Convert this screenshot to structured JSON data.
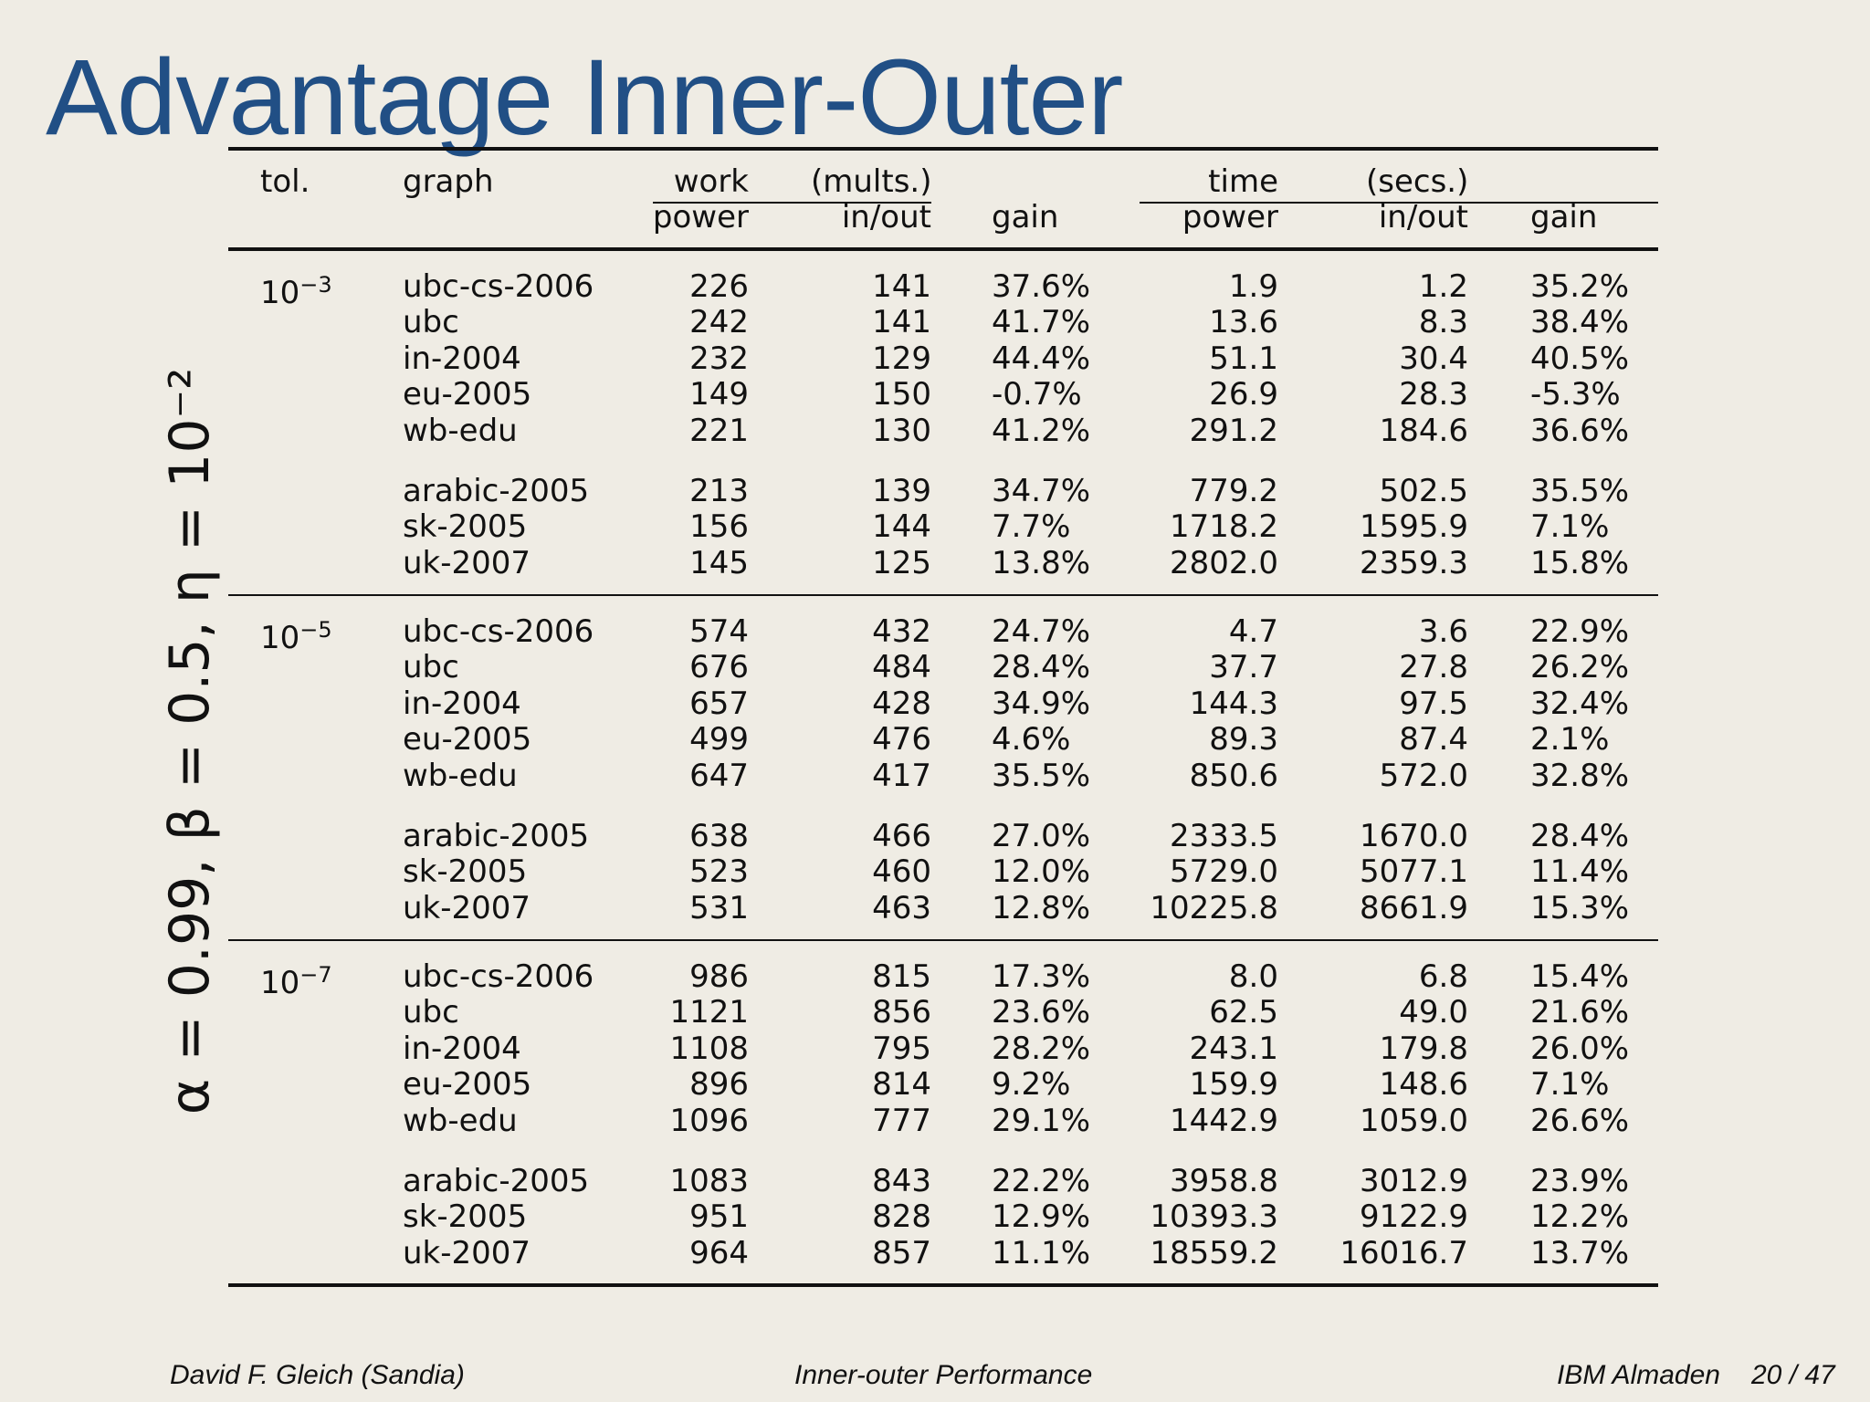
{
  "title": "Advantage Inner-Outer",
  "side_label": "α = 0.99, β = 0.5, η = 10⁻²",
  "header": {
    "tol": "tol.",
    "graph": "graph",
    "work": "work",
    "mults": "(mults.)",
    "time": "time",
    "secs": "(secs.)",
    "power": "power",
    "inout": "in/out",
    "gain": "gain"
  },
  "groups": [
    {
      "tol_base": "10",
      "tol_exp": "−3",
      "rows": [
        [
          "ubc-cs-2006",
          "226",
          "141",
          "37.6%",
          "1.9",
          "1.2",
          "35.2%"
        ],
        [
          "ubc",
          "242",
          "141",
          "41.7%",
          "13.6",
          "8.3",
          "38.4%"
        ],
        [
          "in-2004",
          "232",
          "129",
          "44.4%",
          "51.1",
          "30.4",
          "40.5%"
        ],
        [
          "eu-2005",
          "149",
          "150",
          "-0.7%",
          "26.9",
          "28.3",
          "-5.3%"
        ],
        [
          "wb-edu",
          "221",
          "130",
          "41.2%",
          "291.2",
          "184.6",
          "36.6%"
        ],
        [
          "arabic-2005",
          "213",
          "139",
          "34.7%",
          "779.2",
          "502.5",
          "35.5%"
        ],
        [
          "sk-2005",
          "156",
          "144",
          "7.7%",
          "1718.2",
          "1595.9",
          "7.1%"
        ],
        [
          "uk-2007",
          "145",
          "125",
          "13.8%",
          "2802.0",
          "2359.3",
          "15.8%"
        ]
      ]
    },
    {
      "tol_base": "10",
      "tol_exp": "−5",
      "rows": [
        [
          "ubc-cs-2006",
          "574",
          "432",
          "24.7%",
          "4.7",
          "3.6",
          "22.9%"
        ],
        [
          "ubc",
          "676",
          "484",
          "28.4%",
          "37.7",
          "27.8",
          "26.2%"
        ],
        [
          "in-2004",
          "657",
          "428",
          "34.9%",
          "144.3",
          "97.5",
          "32.4%"
        ],
        [
          "eu-2005",
          "499",
          "476",
          "4.6%",
          "89.3",
          "87.4",
          "2.1%"
        ],
        [
          "wb-edu",
          "647",
          "417",
          "35.5%",
          "850.6",
          "572.0",
          "32.8%"
        ],
        [
          "arabic-2005",
          "638",
          "466",
          "27.0%",
          "2333.5",
          "1670.0",
          "28.4%"
        ],
        [
          "sk-2005",
          "523",
          "460",
          "12.0%",
          "5729.0",
          "5077.1",
          "11.4%"
        ],
        [
          "uk-2007",
          "531",
          "463",
          "12.8%",
          "10225.8",
          "8661.9",
          "15.3%"
        ]
      ]
    },
    {
      "tol_base": "10",
      "tol_exp": "−7",
      "rows": [
        [
          "ubc-cs-2006",
          "986",
          "815",
          "17.3%",
          "8.0",
          "6.8",
          "15.4%"
        ],
        [
          "ubc",
          "1121",
          "856",
          "23.6%",
          "62.5",
          "49.0",
          "21.6%"
        ],
        [
          "in-2004",
          "1108",
          "795",
          "28.2%",
          "243.1",
          "179.8",
          "26.0%"
        ],
        [
          "eu-2005",
          "896",
          "814",
          "9.2%",
          "159.9",
          "148.6",
          "7.1%"
        ],
        [
          "wb-edu",
          "1096",
          "777",
          "29.1%",
          "1442.9",
          "1059.0",
          "26.6%"
        ],
        [
          "arabic-2005",
          "1083",
          "843",
          "22.2%",
          "3958.8",
          "3012.9",
          "23.9%"
        ],
        [
          "sk-2005",
          "951",
          "828",
          "12.9%",
          "10393.3",
          "9122.9",
          "12.2%"
        ],
        [
          "uk-2007",
          "964",
          "857",
          "11.1%",
          "18559.2",
          "16016.7",
          "13.7%"
        ]
      ]
    }
  ],
  "footer": {
    "author": "David F. Gleich   (Sandia)",
    "talk": "Inner-outer Performance",
    "venue": "IBM Almaden",
    "page": "20 / 47"
  }
}
